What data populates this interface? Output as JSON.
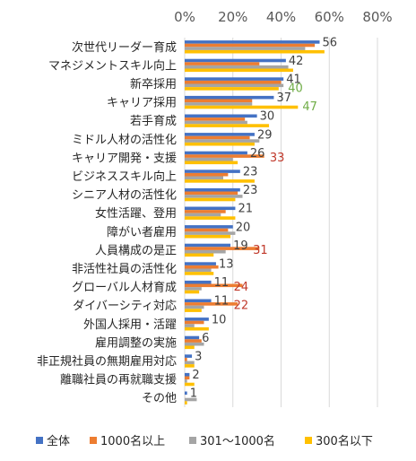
{
  "chart_data": {
    "type": "bar",
    "orientation": "horizontal",
    "xlim": [
      0,
      80
    ],
    "ticks": [
      "0%",
      "20%",
      "40%",
      "60%",
      "80%"
    ],
    "tick_values": [
      0,
      20,
      40,
      60,
      80
    ],
    "grid": true,
    "legend_position": "bottom",
    "categories": [
      "次世代リーダー育成",
      "マネジメントスキル向上",
      "新卒採用",
      "キャリア採用",
      "若手育成",
      "ミドル人材の活性化",
      "キャリア開発・支援",
      "ビジネススキル向上",
      "シニア人材の活性化",
      "女性活躍、登用",
      "障がい者雇用",
      "人員構成の是正",
      "非活性社員の活性化",
      "グローバル人材育成",
      "ダイバーシティ対応",
      "外国人採用・活躍",
      "雇用調整の実施",
      "非正規社員の無期雇用対応",
      "離職社員の再就職支援",
      "その他"
    ],
    "series": [
      {
        "name": "全体",
        "color": "#4472c4",
        "values": [
          56,
          42,
          41,
          37,
          30,
          29,
          26,
          23,
          23,
          21,
          20,
          19,
          13,
          11,
          11,
          10,
          6,
          3,
          2,
          1
        ]
      },
      {
        "name": "1000名以上",
        "color": "#ed7d31",
        "values": [
          54,
          31,
          40,
          28,
          25,
          27,
          33,
          18,
          22,
          17,
          18,
          31,
          14,
          24,
          22,
          8,
          7,
          1,
          2,
          0
        ]
      },
      {
        "name": "301〜1000名",
        "color": "#a5a5a5",
        "values": [
          50,
          43,
          41,
          28,
          26,
          31,
          20,
          16,
          24,
          15,
          21,
          17,
          11,
          7,
          8,
          4,
          8,
          4,
          1,
          5
        ]
      },
      {
        "name": "300名以下",
        "color": "#ffc000",
        "values": [
          58,
          45,
          39,
          47,
          35,
          29,
          22,
          29,
          21,
          21,
          19,
          12,
          12,
          6,
          7,
          10,
          4,
          4,
          4,
          1
        ]
      }
    ],
    "data_labels": [
      "56",
      "42",
      "41",
      "37",
      "30",
      "29",
      "26",
      "23",
      "23",
      "21",
      "20",
      "19",
      "13",
      "11",
      "11",
      "10",
      "6",
      "3",
      "2",
      "1"
    ],
    "highlight_labels": [
      {
        "row": 2,
        "text": "40",
        "color": "#70ad47"
      },
      {
        "row": 3,
        "text": "47",
        "color": "#70ad47"
      },
      {
        "row": 6,
        "text": "33",
        "color": "#c0392b"
      },
      {
        "row": 11,
        "text": "31",
        "color": "#c0392b"
      },
      {
        "row": 13,
        "text": "24",
        "color": "#c0392b"
      },
      {
        "row": 14,
        "text": "22",
        "color": "#c0392b"
      }
    ]
  }
}
